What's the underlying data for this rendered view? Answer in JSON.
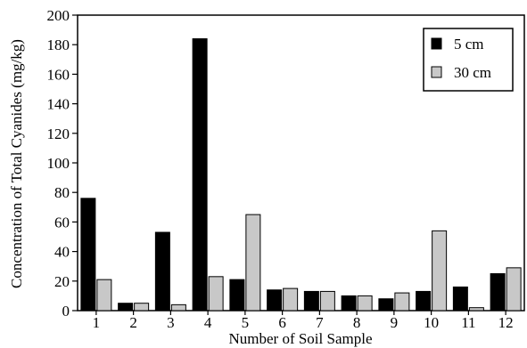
{
  "chart_data": {
    "type": "bar",
    "title": "",
    "xlabel": "Number of Soil Sample",
    "ylabel": "Concentration of Total Cyanides (mg/kg)",
    "categories": [
      "1",
      "2",
      "3",
      "4",
      "5",
      "6",
      "7",
      "8",
      "9",
      "10",
      "11",
      "12"
    ],
    "series": [
      {
        "name": "5 cm",
        "color": "#000000",
        "values": [
          76,
          5,
          53,
          184,
          21,
          14,
          13,
          10,
          8,
          13,
          16,
          25
        ]
      },
      {
        "name": "30 cm",
        "color": "#c8c8c8",
        "values": [
          21,
          5,
          4,
          23,
          65,
          15,
          13,
          10,
          12,
          54,
          2,
          29
        ]
      }
    ],
    "ylim": [
      0,
      200
    ],
    "yticks": [
      "0",
      "20",
      "40",
      "60",
      "80",
      "100",
      "120",
      "140",
      "160",
      "180",
      "200"
    ],
    "grid": false,
    "legend": "top-right"
  }
}
